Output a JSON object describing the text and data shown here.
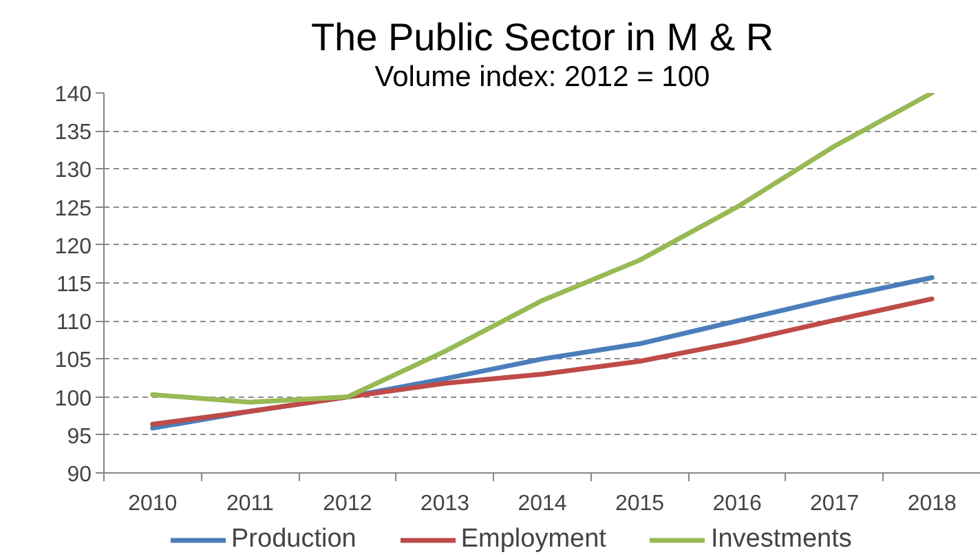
{
  "chart_data": {
    "type": "line",
    "title": "The Public Sector in M & R",
    "subtitle": "Volume index: 2012 = 100",
    "categories": [
      "2010",
      "2011",
      "2012",
      "2013",
      "2014",
      "2015",
      "2016",
      "2017",
      "2018"
    ],
    "series": [
      {
        "name": "Production",
        "color": "#4a7ebb",
        "values": [
          95.9,
          98.1,
          100,
          102.4,
          105,
          107,
          110,
          113,
          115.7
        ]
      },
      {
        "name": "Employment",
        "color": "#be4b48",
        "values": [
          96.4,
          98.1,
          100,
          101.8,
          103,
          104.7,
          107.2,
          110.1,
          112.9
        ]
      },
      {
        "name": "Investments",
        "color": "#98b954",
        "values": [
          100.3,
          99.3,
          100,
          106,
          112.7,
          118,
          125,
          133,
          140
        ]
      }
    ],
    "ylim": [
      90,
      140
    ],
    "yticks": [
      90,
      95,
      100,
      105,
      110,
      115,
      120,
      125,
      130,
      135,
      140
    ],
    "grid": "y",
    "legend": "bottom",
    "line_style": "solid"
  }
}
